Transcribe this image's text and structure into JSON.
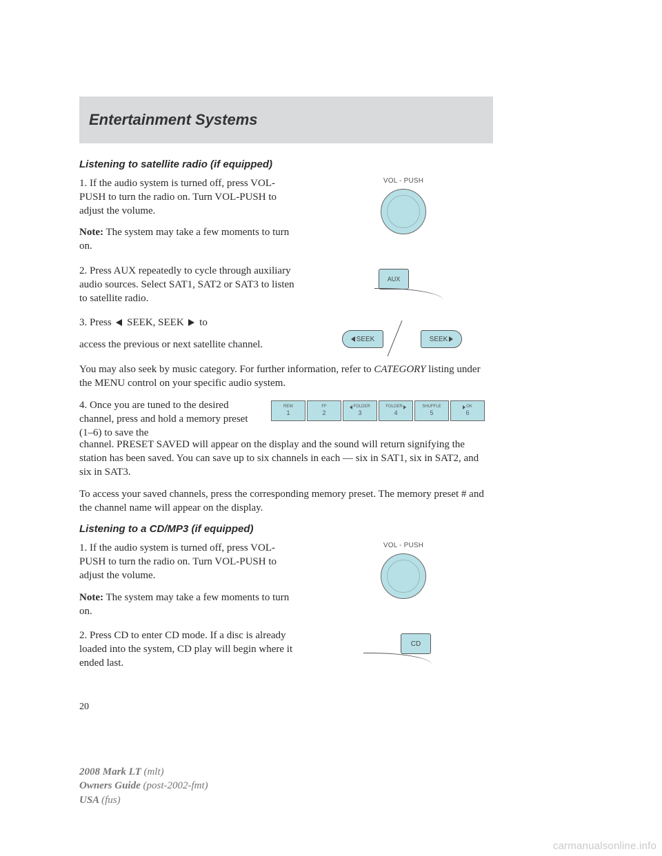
{
  "colors": {
    "band": "#d8dadb",
    "control_fill": "#b7e0e6",
    "text": "#2a2a2a",
    "footer": "#777777",
    "watermark": "#c9c9c9"
  },
  "header": {
    "title": "Entertainment Systems"
  },
  "sec1": {
    "heading": "Listening to satellite radio (if equipped)",
    "p1": "1. If the audio system is turned off, press VOL-PUSH to turn the radio on. Turn VOL-PUSH to adjust the volume.",
    "note_label": "Note:",
    "note_text": " The system may take a few moments to turn on.",
    "p2": "2. Press AUX repeatedly to cycle through auxiliary audio sources. Select SAT1, SAT2 or SAT3 to listen to satellite radio.",
    "p3a": "3. Press ",
    "p3b": " SEEK, SEEK ",
    "p3c": " to",
    "p3d": "access the previous or next satellite channel.",
    "p4a": "You may also seek by music category. For further information, refer to ",
    "p4_em": "CATEGORY",
    "p4b": " listing under the MENU control on your specific audio system.",
    "p5": "4. Once you are tuned to the desired channel, press and hold a memory preset (1–6) to save the channel. PRESET SAVED will appear on the display and the sound will return signifying the station has been saved. You can save up to six channels in each — six in SAT1, six in SAT2, and six in SAT3.",
    "p6": "To access your saved channels, press the corresponding memory preset. The memory preset # and the channel name will appear on the display."
  },
  "sec2": {
    "heading": "Listening to a CD/MP3 (if equipped)",
    "p1": "1. If the audio system is turned off, press VOL-PUSH to turn the radio on. Turn VOL-PUSH to adjust the volume.",
    "note_label": "Note:",
    "note_text": " The system may take a few moments to turn on.",
    "p2": "2. Press CD to enter CD mode. If a disc is already loaded into the system, CD play will begin where it ended last."
  },
  "figs": {
    "vol_label": "VOL - PUSH",
    "aux_label": "AUX",
    "seek_label": "SEEK",
    "cd_label": "CD",
    "presets": [
      {
        "top": "REW",
        "num": "1"
      },
      {
        "top": "FF",
        "num": "2"
      },
      {
        "top": "FOLDER",
        "num": "3",
        "left_tri": true
      },
      {
        "top": "FOLDER",
        "num": "4",
        "right_tri": true
      },
      {
        "top": "SHUFFLE",
        "num": "5"
      },
      {
        "top": "OK",
        "num": "6",
        "playpause": true
      }
    ]
  },
  "page_number": "20",
  "footer": {
    "l1a": "2008 Mark LT ",
    "l1b": "(mlt)",
    "l2a": "Owners Guide ",
    "l2b": "(post-2002-fmt)",
    "l3a": "USA ",
    "l3b": "(fus)"
  },
  "watermark": "carmanualsonline.info"
}
